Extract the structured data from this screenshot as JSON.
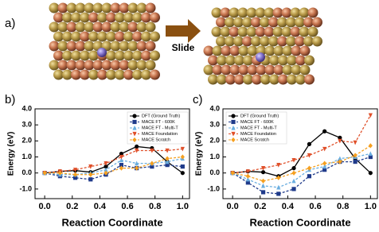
{
  "panel_a": {
    "label": "a)",
    "arrow_text": "Slide"
  },
  "chart_data": [
    {
      "type": "line",
      "panel_label": "b)",
      "xlabel": "Reaction Coordinate",
      "ylabel": "Energy (eV)",
      "x": [
        0,
        0.111,
        0.222,
        0.333,
        0.444,
        0.556,
        0.667,
        0.778,
        0.889,
        1.0
      ],
      "xlim": [
        -0.07,
        1.05
      ],
      "ylim": [
        -1.6,
        4.0
      ],
      "xticks": [
        {
          "value": 0,
          "label": "0.0"
        },
        {
          "value": 0.2,
          "label": "0.2"
        },
        {
          "value": 0.4,
          "label": "0.4"
        },
        {
          "value": 0.6,
          "label": "0.6"
        },
        {
          "value": 0.8,
          "label": "0.8"
        },
        {
          "value": 1,
          "label": "1.0"
        }
      ],
      "yticks": [
        {
          "value": -1,
          "label": "-1.0"
        },
        {
          "value": 0,
          "label": "0.0"
        },
        {
          "value": 1,
          "label": "1.0"
        },
        {
          "value": 2,
          "label": "2.0"
        },
        {
          "value": 3,
          "label": "3.0"
        },
        {
          "value": 4,
          "label": "4.0"
        }
      ],
      "legend": "upper right",
      "series": [
        {
          "name": "DFT (Ground Truth)",
          "color": "#000000",
          "marker": "circle",
          "dash": "solid",
          "values": [
            0,
            0.1,
            0.15,
            0.05,
            0.4,
            1.2,
            1.65,
            1.55,
            0.7,
            0.0
          ]
        },
        {
          "name": "MACE FT - 600K",
          "color": "#1f3a8a",
          "marker": "square",
          "dash": "dashed",
          "values": [
            0,
            -0.2,
            -0.3,
            -0.4,
            -0.1,
            0.5,
            0.3,
            0.4,
            0.5,
            0.4
          ]
        },
        {
          "name": "MACE FT - Multi-T",
          "color": "#6aaee0",
          "marker": "triangle",
          "dash": "dashed",
          "values": [
            0,
            -0.1,
            -0.1,
            0,
            0.2,
            0.8,
            0.6,
            0.6,
            0.7,
            0.9
          ]
        },
        {
          "name": "MACE Foundation",
          "color": "#e0502a",
          "marker": "triangle-down",
          "dash": "dashed",
          "values": [
            0,
            0.1,
            0.2,
            0.4,
            0.6,
            1.0,
            1.4,
            1.4,
            1.4,
            1.5
          ]
        },
        {
          "name": "MACE Scratch",
          "color": "#f5a020",
          "marker": "diamond",
          "dash": "dashed",
          "values": [
            0,
            0.0,
            -0.1,
            -0.1,
            0,
            0.3,
            0.3,
            0.6,
            0.9,
            1.0
          ]
        }
      ]
    },
    {
      "type": "line",
      "panel_label": "c)",
      "xlabel": "Reaction Coordinate",
      "ylabel": "Energy (eV)",
      "x": [
        0,
        0.111,
        0.222,
        0.333,
        0.444,
        0.556,
        0.667,
        0.778,
        0.889,
        1.0
      ],
      "xlim": [
        -0.07,
        1.05
      ],
      "ylim": [
        -1.6,
        4.0
      ],
      "xticks": [
        {
          "value": 0,
          "label": "0.0"
        },
        {
          "value": 0.2,
          "label": "0.2"
        },
        {
          "value": 0.4,
          "label": "0.4"
        },
        {
          "value": 0.6,
          "label": "0.6"
        },
        {
          "value": 0.8,
          "label": "0.8"
        },
        {
          "value": 1,
          "label": "1.0"
        }
      ],
      "yticks": [
        {
          "value": -1,
          "label": "-1.0"
        },
        {
          "value": 0,
          "label": "0.0"
        },
        {
          "value": 1,
          "label": "1.0"
        },
        {
          "value": 2,
          "label": "2.0"
        },
        {
          "value": 3,
          "label": "3.0"
        },
        {
          "value": 4,
          "label": "4.0"
        }
      ],
      "legend": "upper left",
      "series": [
        {
          "name": "DFT (Ground Truth)",
          "color": "#000000",
          "marker": "circle",
          "dash": "solid",
          "values": [
            0,
            0.1,
            0.05,
            -0.2,
            0.3,
            1.8,
            2.6,
            2.2,
            0.9,
            0.0
          ]
        },
        {
          "name": "MACE FT - 600K",
          "color": "#1f3a8a",
          "marker": "square",
          "dash": "dashed",
          "values": [
            0,
            -0.6,
            -1.2,
            -1.3,
            -1.0,
            -0.2,
            0.2,
            0.7,
            0.7,
            1.0
          ]
        },
        {
          "name": "MACE FT - Multi-T",
          "color": "#6aaee0",
          "marker": "triangle",
          "dash": "dashed",
          "values": [
            0,
            -0.4,
            -0.8,
            -0.9,
            -0.5,
            0.2,
            0.4,
            0.9,
            1.0,
            1.2
          ]
        },
        {
          "name": "MACE Foundation",
          "color": "#e0502a",
          "marker": "triangle-down",
          "dash": "dashed",
          "values": [
            0,
            0.1,
            0.3,
            0.5,
            0.8,
            1.1,
            1.5,
            2.0,
            1.9,
            3.6
          ]
        },
        {
          "name": "MACE Scratch",
          "color": "#f5a020",
          "marker": "diamond",
          "dash": "dashed",
          "values": [
            0,
            -0.2,
            -0.5,
            -0.3,
            0.0,
            0.3,
            0.6,
            0.7,
            1.1,
            1.7
          ]
        }
      ]
    }
  ]
}
